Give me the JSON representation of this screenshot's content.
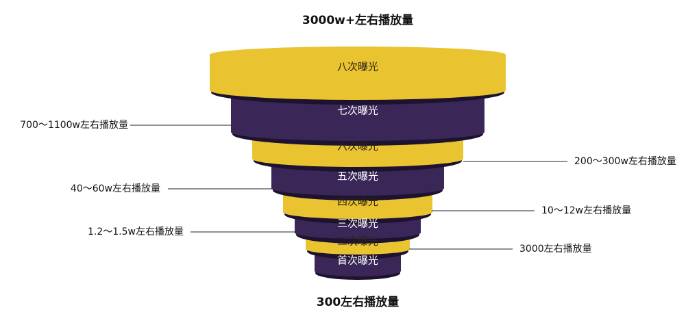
{
  "title": "3000w+左右播放量",
  "bottom_label": "300左右播放量",
  "colors": {
    "yellow": "#E9C330",
    "purple": "#3A2657",
    "shadow": "#1D1330",
    "text_dark": "#2B2118",
    "text_light": "#FFFFFF"
  },
  "tiers": [
    {
      "label": "八次曝光",
      "fill": "yellow"
    },
    {
      "label": "七次曝光",
      "fill": "purple"
    },
    {
      "label": "六次曝光",
      "fill": "yellow"
    },
    {
      "label": "五次曝光",
      "fill": "purple"
    },
    {
      "label": "四次曝光",
      "fill": "yellow"
    },
    {
      "label": "三次曝光",
      "fill": "purple"
    },
    {
      "label": "二次曝光",
      "fill": "yellow"
    },
    {
      "label": "首次曝光",
      "fill": "purple"
    }
  ],
  "annotations": [
    {
      "text": "700～1100w左右播放量"
    },
    {
      "text": "200～300w左右播放量"
    },
    {
      "text": "40～60w左右播放量"
    },
    {
      "text": "10～12w左右播放量"
    },
    {
      "text": "1.2～1.5w左右播放量"
    },
    {
      "text": "3000左右播放量"
    }
  ]
}
